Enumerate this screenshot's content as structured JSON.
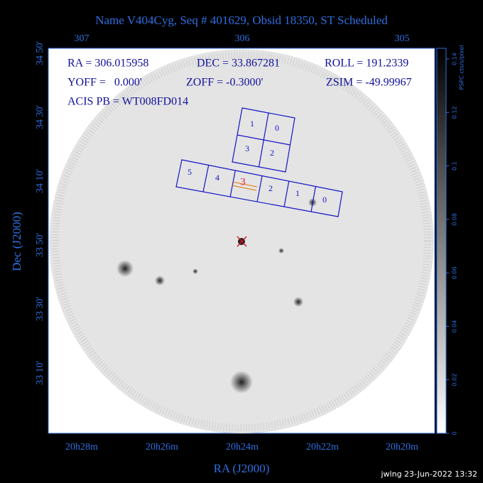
{
  "title": "Name V404Cyg, Seq # 401629, Obsid 18350, ST Scheduled",
  "info": [
    "RA = 306.015958",
    "DEC = 33.867281",
    "ROLL = 191.2339",
    "YOFF =   0.000'",
    "ZOFF = -0.3000'",
    "ZSIM = -49.99967",
    "ACIS PB = WT008FD014"
  ],
  "x_axis": {
    "label": "RA (J2000)",
    "top_ticks": [
      "307",
      "306",
      "305"
    ],
    "bottom_ticks": [
      "20h28m",
      "20h26m",
      "20h24m",
      "20h22m",
      "20h20m"
    ]
  },
  "y_axis": {
    "label": "Dec (J2000)",
    "ticks": [
      "34 50'",
      "34 30'",
      "34 10'",
      "33 50'",
      "33 30'",
      "33 10'"
    ]
  },
  "colorbar": {
    "label": "PSPC cts/s/pixel",
    "lim": [
      0,
      0.144
    ],
    "ticks": [
      0,
      0.02,
      0.04,
      0.06,
      0.08,
      0.1,
      0.12,
      0.14
    ]
  },
  "acis_i_chips": [
    "1",
    "0",
    "3",
    "2"
  ],
  "acis_s_chips": [
    "5",
    "4",
    "3",
    "2",
    "1",
    "0"
  ],
  "footer": "jwlng 23-Jun-2022 13:32"
}
